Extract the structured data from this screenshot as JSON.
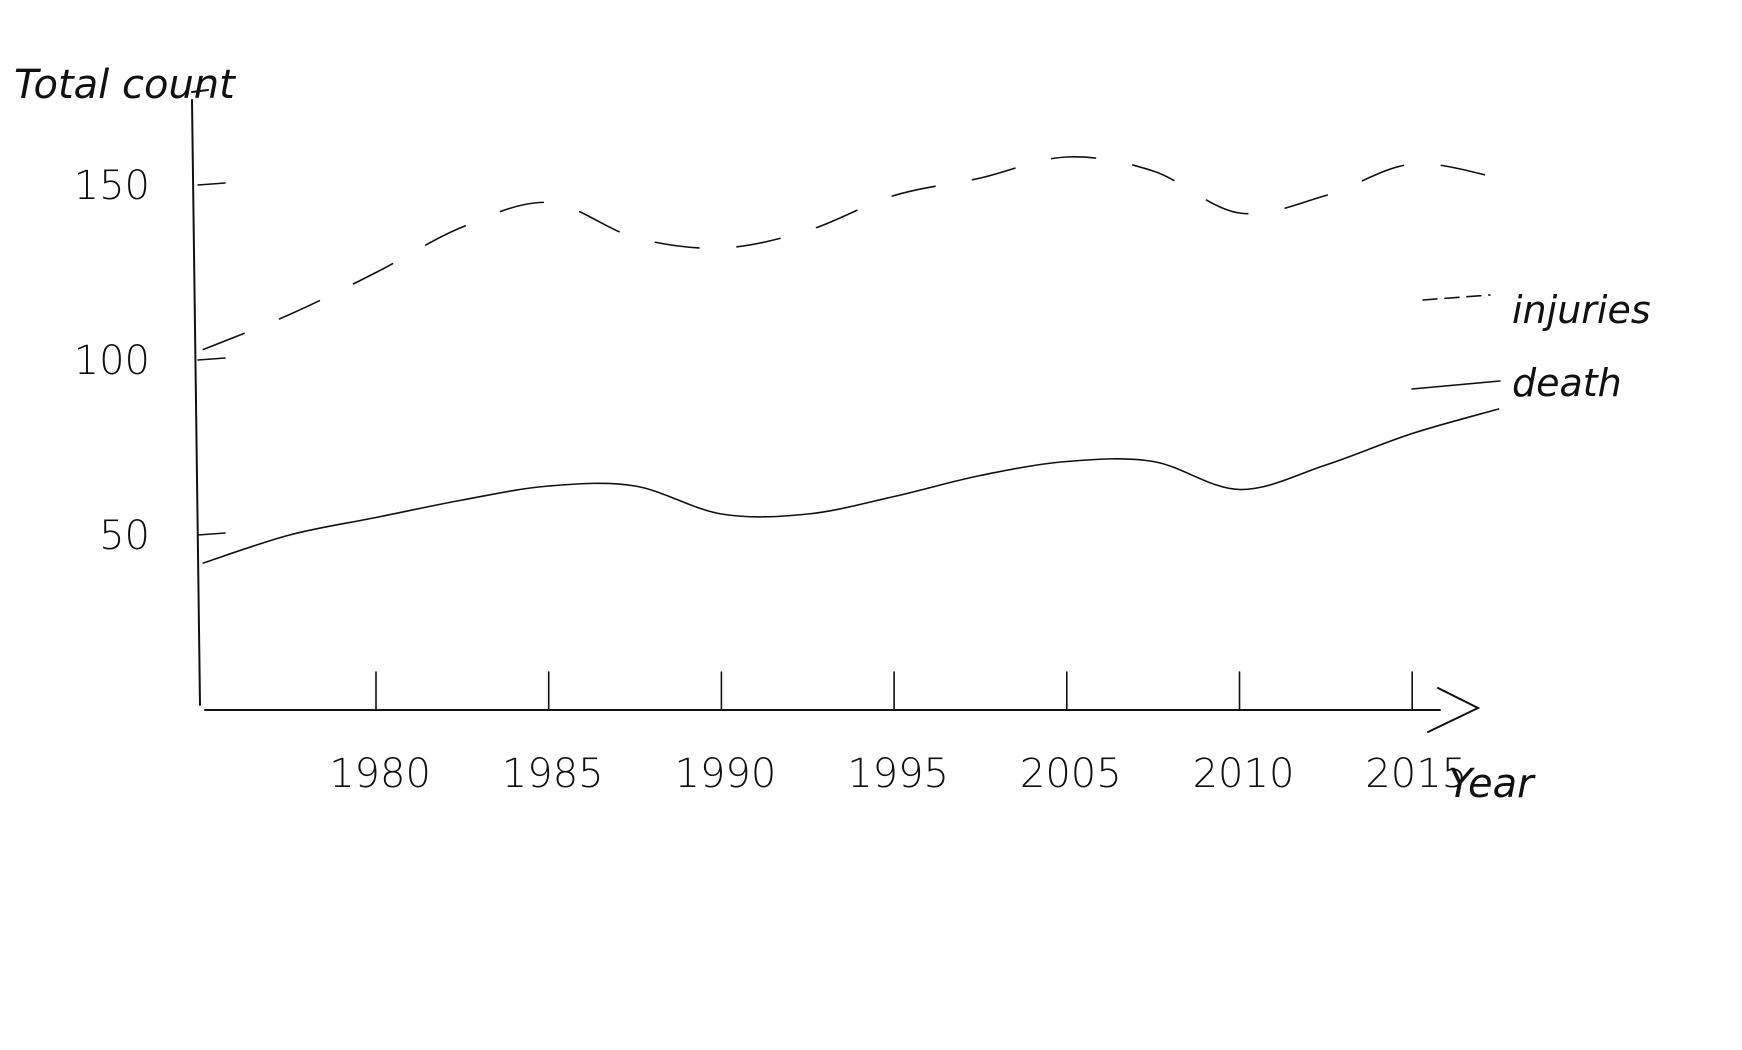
{
  "chart_data": {
    "type": "line",
    "ylabel": "Total count",
    "xlabel": "Year",
    "x_tick_labels": [
      "1980",
      "1985",
      "1990",
      "1995",
      "2005",
      "2010",
      "2015"
    ],
    "y_ticks": [
      50,
      100,
      150
    ],
    "y_tick_labels": [
      "50",
      "100",
      "150"
    ],
    "ylim": [
      0,
      170
    ],
    "x_index": [
      -1,
      -0.5,
      0,
      0.5,
      1,
      1.5,
      2,
      2.5,
      3,
      3.5,
      4,
      4.5,
      5,
      5.5,
      6,
      6.5
    ],
    "series": [
      {
        "name": "injuries",
        "style": "dashed",
        "values": [
          103,
          113,
          125,
          138,
          145,
          135,
          132,
          137,
          147,
          152,
          158,
          154,
          142,
          147,
          156,
          152
        ]
      },
      {
        "name": "death",
        "style": "solid",
        "values": [
          42,
          50,
          55,
          60,
          64,
          64,
          56,
          56,
          61,
          67,
          71,
          71,
          63,
          70,
          79,
          86
        ]
      }
    ],
    "legend_position": "right",
    "grid": false
  }
}
